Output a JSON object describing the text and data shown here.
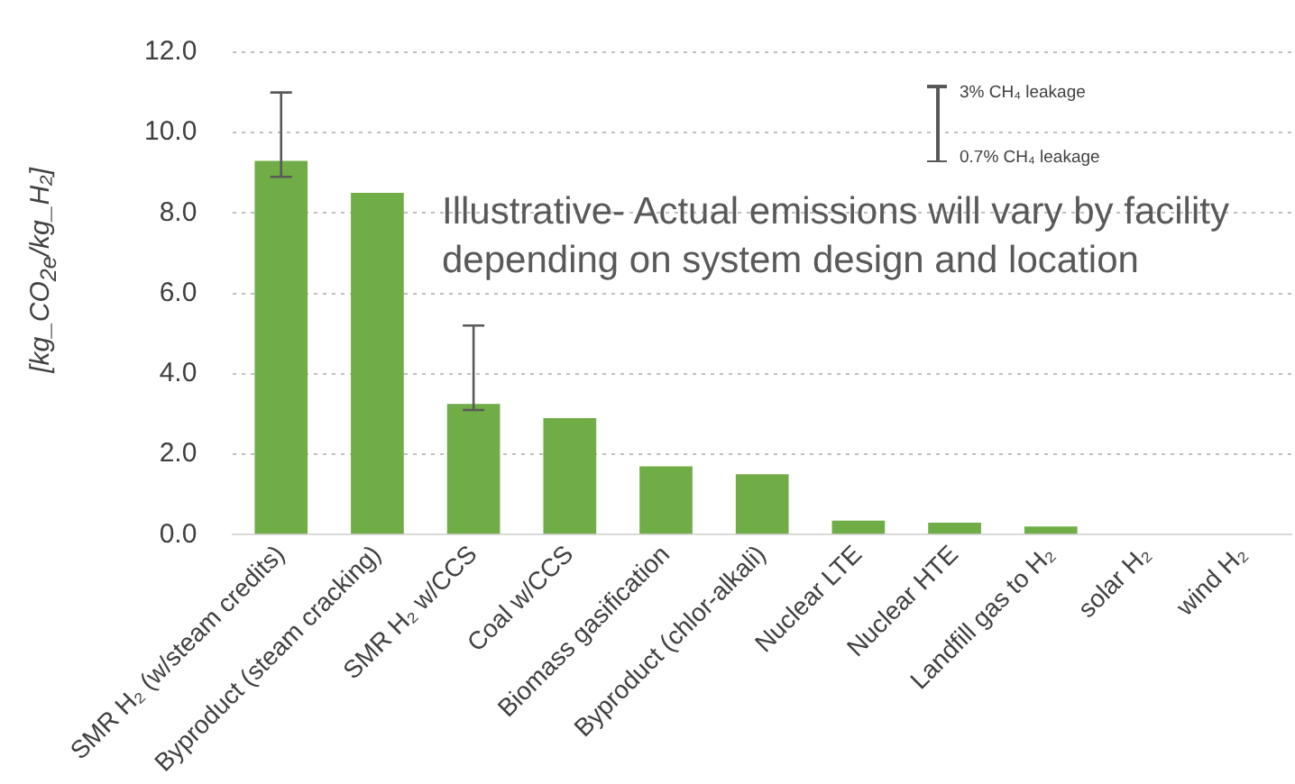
{
  "chart_data": {
    "type": "bar",
    "ylabel": "[kg_CO$_{2e}$/kg_H₂]",
    "categories": [
      "SMR H₂ (w/steam credits)",
      "Byproduct (steam cracking)",
      "SMR H₂ w/CCS",
      "Coal w/CCS",
      "Biomass gasification",
      "Byproduct (chlor-alkali)",
      "Nuclear LTE",
      "Nuclear HTE",
      "Landfill gas to H₂",
      "solar H₂",
      "wind H₂"
    ],
    "values": [
      9.3,
      8.5,
      3.25,
      2.9,
      1.7,
      1.5,
      0.35,
      0.3,
      0.2,
      0,
      0
    ],
    "errors": [
      [
        8.9,
        11.0
      ],
      null,
      [
        3.1,
        5.2
      ],
      null,
      null,
      null,
      null,
      null,
      null,
      null,
      null
    ],
    "color": "#70ad47",
    "ylim": [
      0,
      12
    ],
    "yticks": [
      {
        "value": 0,
        "label": "0.0"
      },
      {
        "value": 2,
        "label": "2.0"
      },
      {
        "value": 4,
        "label": "4.0"
      },
      {
        "value": 6,
        "label": "6.0"
      },
      {
        "value": 8,
        "label": "8.0"
      },
      {
        "value": 10,
        "label": "10.0"
      },
      {
        "value": 12,
        "label": "12.0"
      }
    ],
    "grid": "y",
    "annotations": [
      "Illustrative- Actual emissions will vary by facility depending on system design and location",
      "3% CH₄ leakage",
      "0.7% CH₄ leakage"
    ]
  }
}
